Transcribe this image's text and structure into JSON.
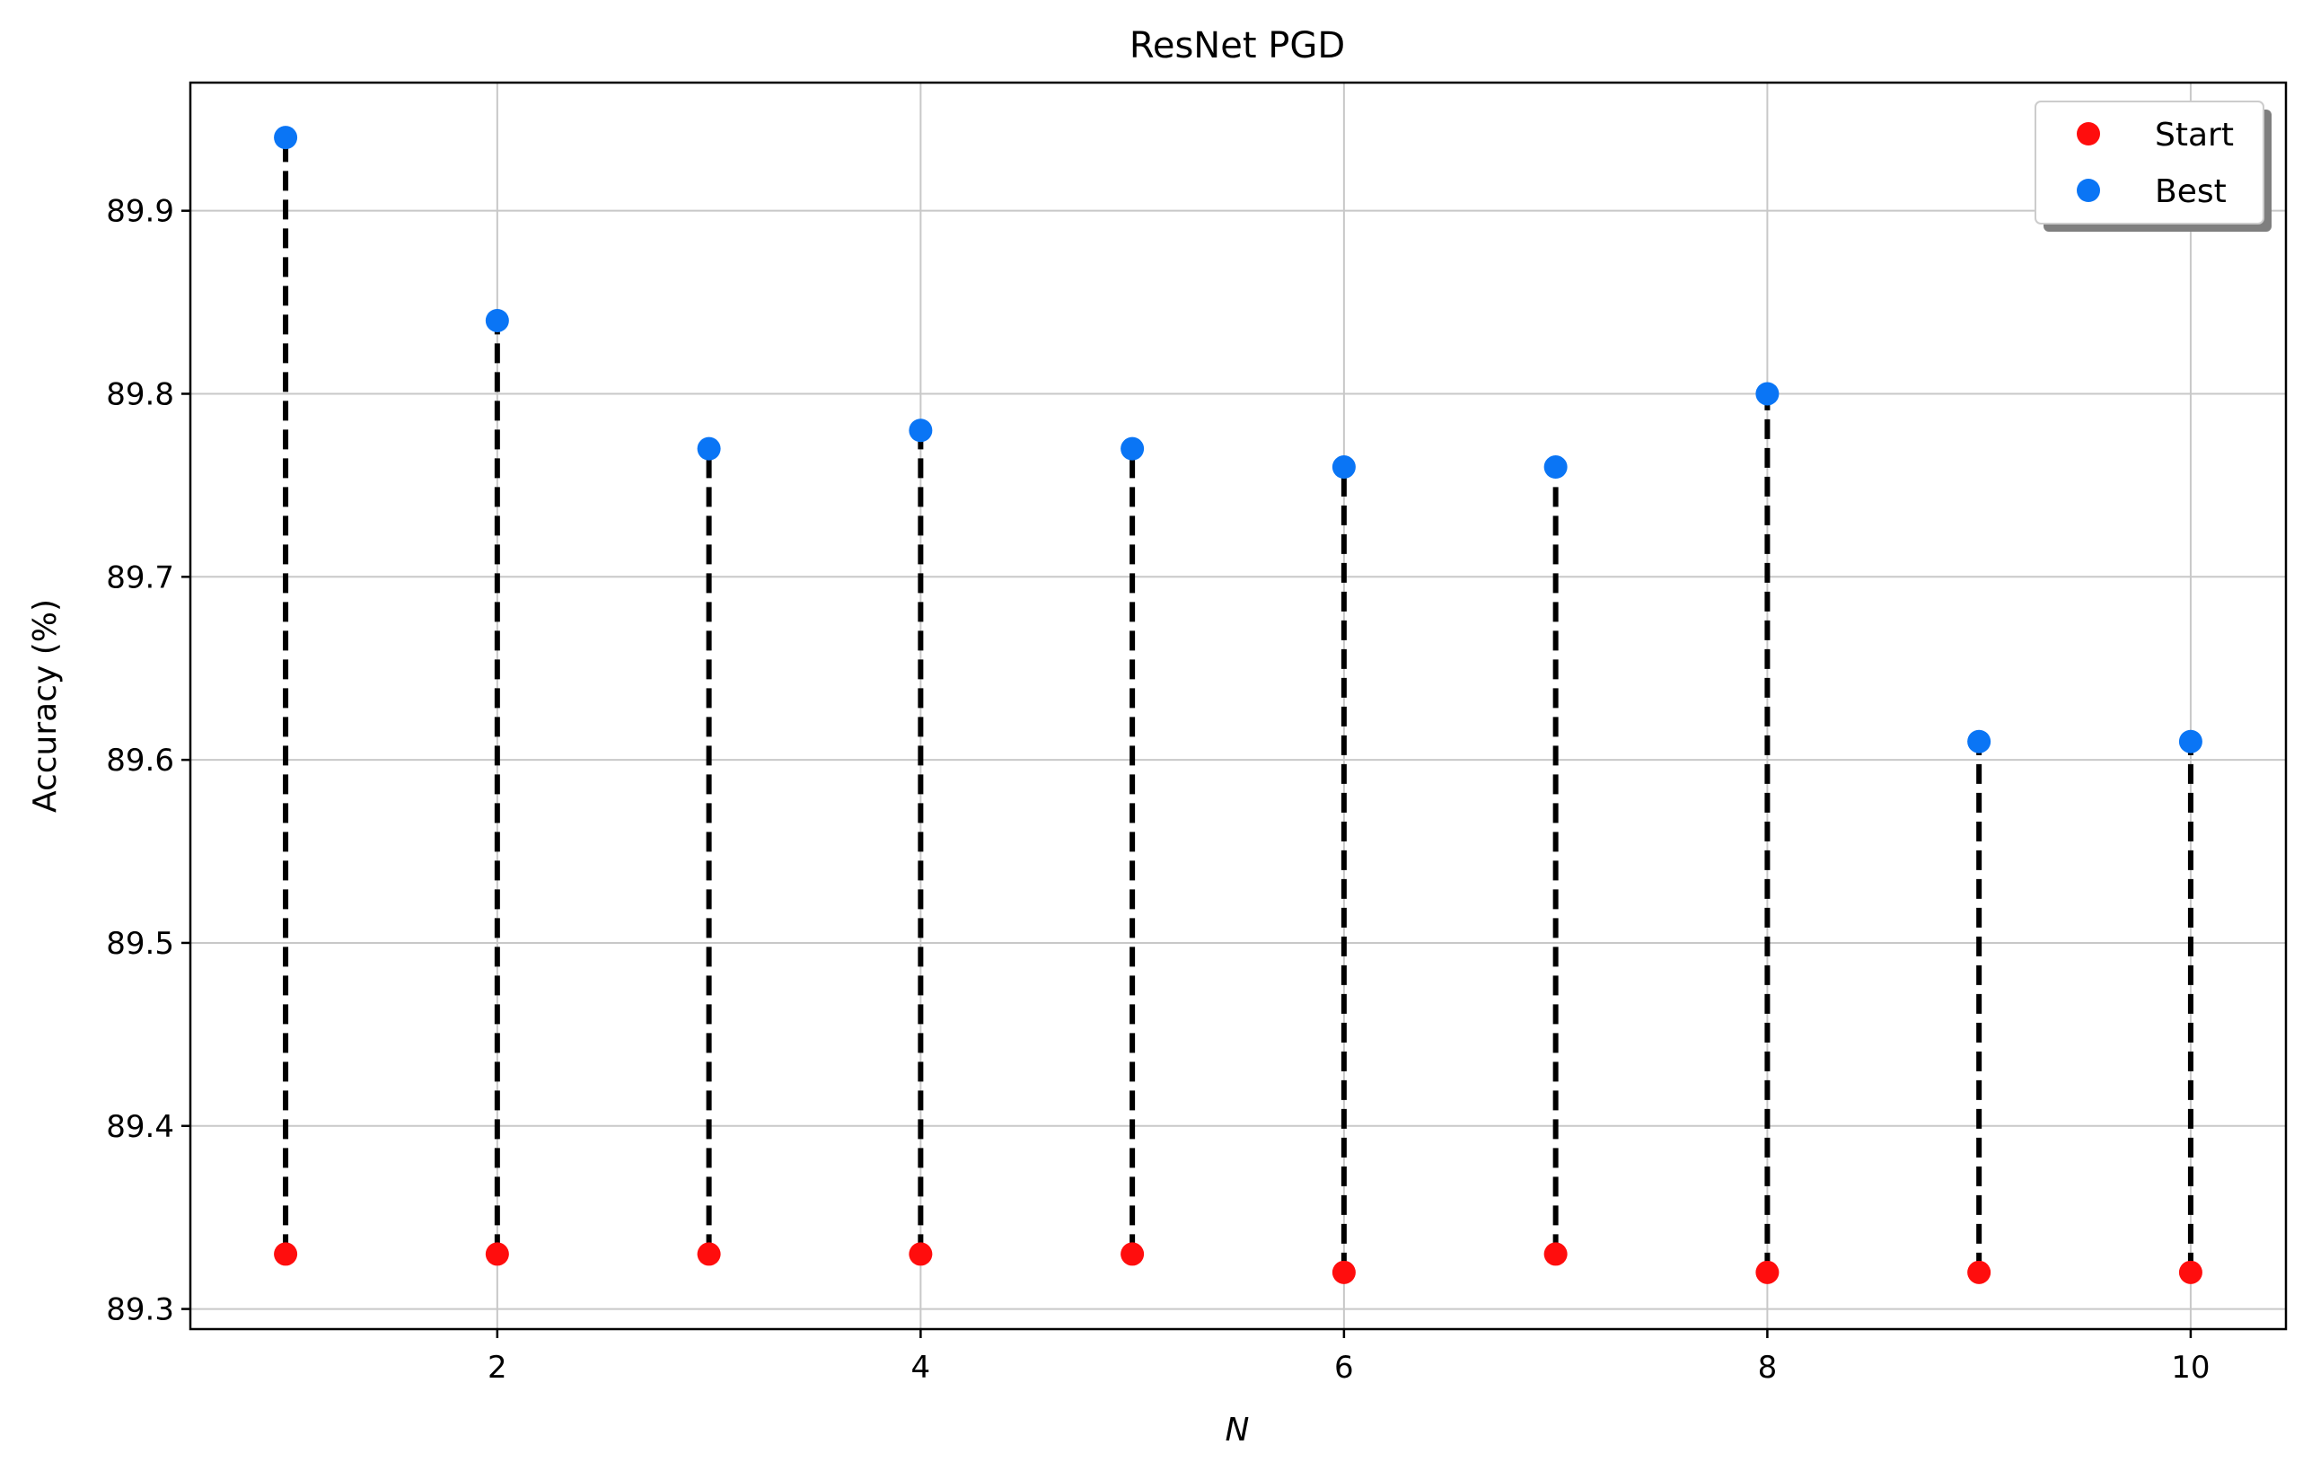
{
  "chart_data": {
    "type": "scatter",
    "title": "ResNet PGD",
    "xlabel": "N",
    "ylabel": "Accuracy (%)",
    "x": [
      1,
      2,
      3,
      4,
      5,
      6,
      7,
      8,
      9,
      10
    ],
    "series": [
      {
        "name": "Start",
        "color": "#ff0d0d",
        "values": [
          89.33,
          89.33,
          89.33,
          89.33,
          89.33,
          89.32,
          89.33,
          89.32,
          89.32,
          89.32
        ]
      },
      {
        "name": "Best",
        "color": "#0a75f5",
        "values": [
          89.94,
          89.84,
          89.77,
          89.78,
          89.77,
          89.76,
          89.76,
          89.8,
          89.61,
          89.61
        ]
      }
    ],
    "connector": {
      "style": "dashed",
      "color": "#000000"
    },
    "xlim": [
      0.55,
      10.45
    ],
    "ylim": [
      89.289,
      89.97
    ],
    "xticks": [
      2,
      4,
      6,
      8,
      10
    ],
    "xtick_labels": [
      "2",
      "4",
      "6",
      "8",
      "10"
    ],
    "yticks": [
      89.3,
      89.4,
      89.5,
      89.6,
      89.7,
      89.8,
      89.9
    ],
    "ytick_labels": [
      "89.3",
      "89.4",
      "89.5",
      "89.6",
      "89.7",
      "89.8",
      "89.9"
    ],
    "grid": true,
    "legend_position": "top-right"
  }
}
